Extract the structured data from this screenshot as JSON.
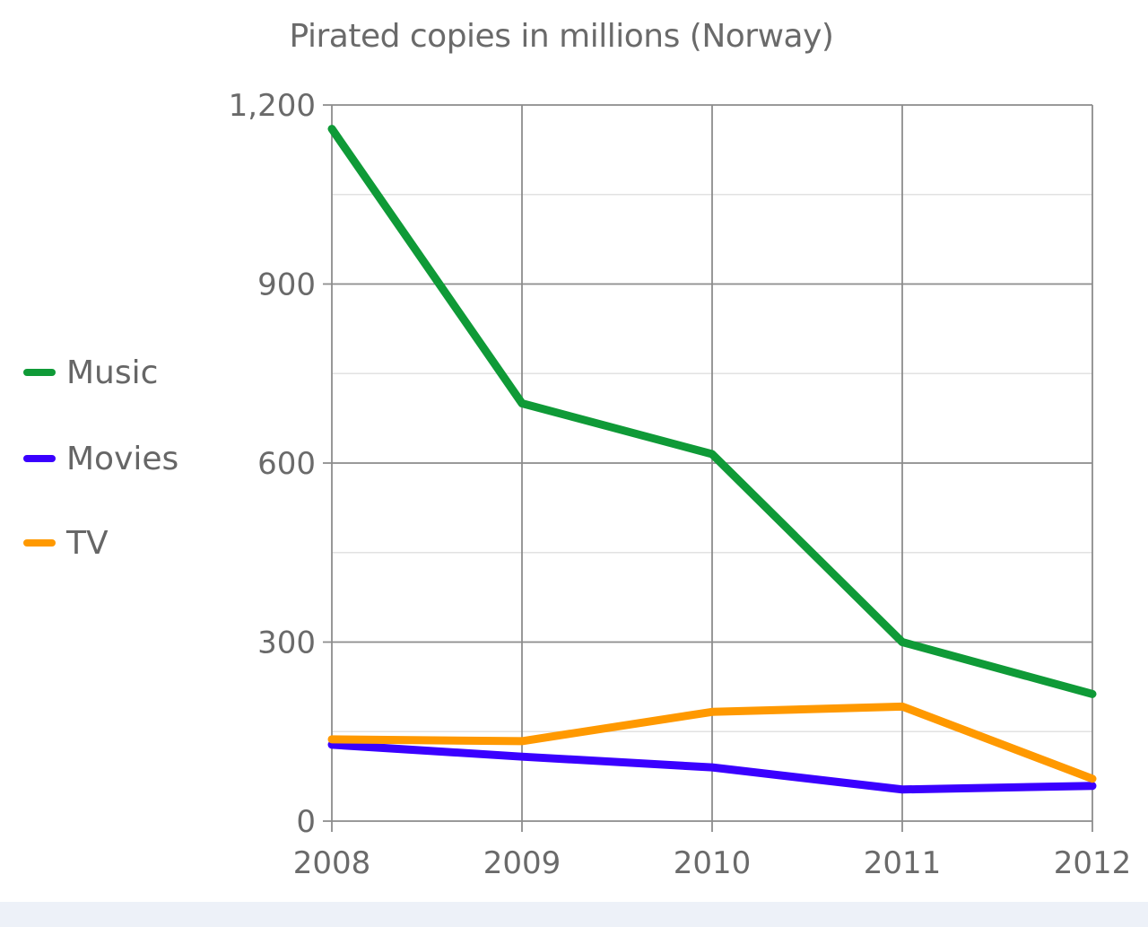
{
  "chart_data": {
    "type": "line",
    "title": "Pirated copies in millions (Norway)",
    "xlabel": "",
    "ylabel": "",
    "categories": [
      "2008",
      "2009",
      "2010",
      "2011",
      "2012"
    ],
    "ylim": [
      0,
      1200
    ],
    "yticks": [
      "0",
      "300",
      "600",
      "900",
      "1,200"
    ],
    "grid": true,
    "legend_position": "left",
    "series": [
      {
        "name": "Music",
        "color": "#0f9a37",
        "values": [
          1160,
          700,
          615,
          300,
          213
        ]
      },
      {
        "name": "Movies",
        "color": "#3a00ff",
        "values": [
          128,
          108,
          90,
          53,
          59
        ]
      },
      {
        "name": "TV",
        "color": "#ff9900",
        "values": [
          137,
          134,
          183,
          192,
          71
        ]
      }
    ]
  }
}
